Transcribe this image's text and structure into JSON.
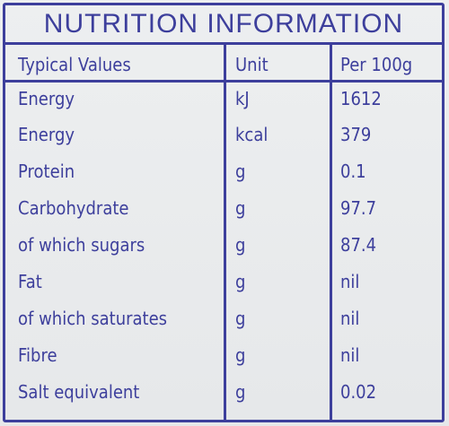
{
  "title": "NUTRITION INFORMATION",
  "columns": {
    "name": "Typical Values",
    "unit": "Unit",
    "value": "Per 100g"
  },
  "rows": [
    {
      "name": "Energy",
      "unit": "kJ",
      "value": "1612"
    },
    {
      "name": "Energy",
      "unit": "kcal",
      "value": "379"
    },
    {
      "name": "Protein",
      "unit": "g",
      "value": "0.1"
    },
    {
      "name": "Carbohydrate",
      "unit": "g",
      "value": "97.7"
    },
    {
      "name": "of which sugars",
      "unit": "g",
      "value": "87.4"
    },
    {
      "name": "Fat",
      "unit": "g",
      "value": "nil"
    },
    {
      "name": "of which saturates",
      "unit": "g",
      "value": "nil"
    },
    {
      "name": "Fibre",
      "unit": "g",
      "value": "nil"
    },
    {
      "name": "Salt equivalent",
      "unit": "g",
      "value": "0.02"
    }
  ],
  "colors": {
    "ink": "#3d3f9c",
    "background": "#e8eaec"
  }
}
